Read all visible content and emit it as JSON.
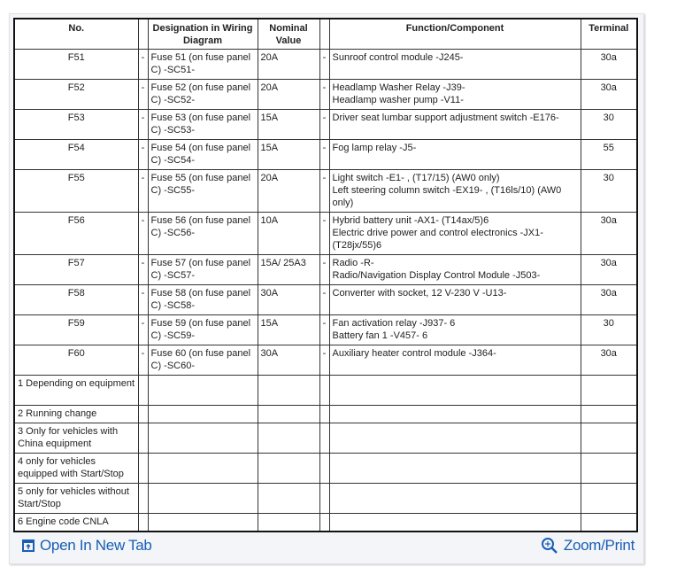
{
  "table": {
    "headers": {
      "no": "No.",
      "designation": "Designation in Wiring Diagram",
      "nominal": "Nominal Value",
      "function": "Function/Component",
      "terminal": "Terminal"
    },
    "rows": [
      {
        "no": "F51",
        "dash1": "-",
        "designation": "Fuse 51 (on fuse panel C) -SC51-",
        "nominal": "20A",
        "dash2": "-",
        "function": "Sunroof control module -J245-",
        "terminal": "30a"
      },
      {
        "no": "F52",
        "dash1": "-",
        "designation": "Fuse 52 (on fuse panel C) -SC52-",
        "nominal": "20A",
        "dash2": "-",
        "function": "Headlamp Washer Relay -J39-\nHeadlamp washer pump -V11-",
        "terminal": "30a"
      },
      {
        "no": "F53",
        "dash1": "-",
        "designation": "Fuse 53 (on fuse panel C) -SC53-",
        "nominal": "15A",
        "dash2": "-",
        "function": "Driver seat lumbar support adjustment switch -E176-",
        "terminal": "30"
      },
      {
        "no": "F54",
        "dash1": "-",
        "designation": "Fuse 54 (on fuse panel C) -SC54-",
        "nominal": "15A",
        "dash2": "-",
        "function": "Fog lamp relay -J5-",
        "terminal": "55"
      },
      {
        "no": "F55",
        "dash1": "-",
        "designation": "Fuse 55 (on fuse panel C) -SC55-",
        "nominal": "20A",
        "dash2": "-",
        "function": "Light switch -E1- , (T17/15) (AW0 only)\nLeft steering column switch -EX19- , (T16ls/10) (AW0 only)",
        "terminal": "30"
      },
      {
        "no": "F56",
        "dash1": "-",
        "designation": "Fuse 56 (on fuse panel C) -SC56-",
        "nominal": "10A",
        "dash2": "-",
        "function": "Hybrid battery unit -AX1- (T14ax/5)6\nElectric drive power and control electronics -JX1- (T28jx/55)6",
        "terminal": "30a"
      },
      {
        "no": "F57",
        "dash1": "-",
        "designation": "Fuse 57 (on fuse panel C) -SC57-",
        "nominal": "15A/ 25A3",
        "dash2": "-",
        "function": "Radio -R-\nRadio/Navigation Display Control Module -J503-",
        "terminal": "30a"
      },
      {
        "no": "F58",
        "dash1": "-",
        "designation": "Fuse 58 (on fuse panel C) -SC58-",
        "nominal": "30A",
        "dash2": "-",
        "function": "Converter with socket, 12 V-230 V -U13-",
        "terminal": "30a"
      },
      {
        "no": "F59",
        "dash1": "-",
        "designation": "Fuse 59 (on fuse panel C) -SC59-",
        "nominal": "15A",
        "dash2": "-",
        "function": "Fan activation relay -J937- 6\nBattery fan 1 -V457- 6",
        "terminal": "30"
      },
      {
        "no": "F60",
        "dash1": "-",
        "designation": "Fuse 60 (on fuse panel C) -SC60-",
        "nominal": "30A",
        "dash2": "-",
        "function": "Auxiliary heater control module -J364-",
        "terminal": "30a"
      }
    ],
    "notes": [
      "1 Depending on equipment",
      "2 Running change",
      "3 Only for vehicles with China equipment",
      "4 only for vehicles equipped with Start/Stop",
      "5 only for vehicles without Start/Stop",
      "6 Engine code CNLA"
    ]
  },
  "footer": {
    "open_tab": "Open In New Tab",
    "zoom_print": "Zoom/Print",
    "link_color": "#1a5fb4"
  }
}
